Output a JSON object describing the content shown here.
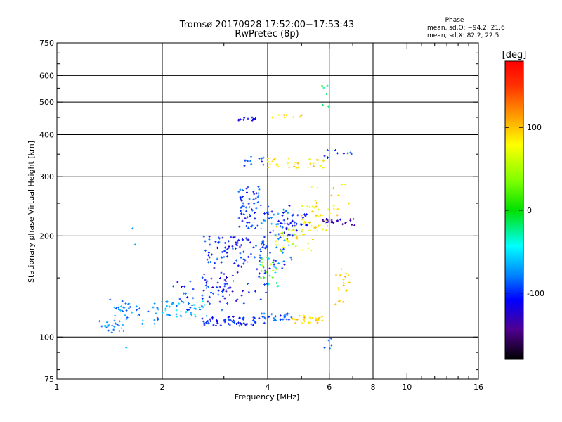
{
  "chart_data": {
    "type": "scatter",
    "title": "Tromsø 20170928 17:52:00−17:53:43",
    "subtitle": "RwPretec (8p)",
    "xlabel": "Frequency [MHz]",
    "ylabel": "Stationary phase Virtual Height [km]",
    "x_scale": "log",
    "y_scale": "log",
    "xlim": [
      1,
      16
    ],
    "ylim": [
      75,
      750
    ],
    "x_ticks": [
      1,
      2,
      4,
      6,
      8,
      10,
      16
    ],
    "y_ticks": [
      75,
      100,
      200,
      300,
      400,
      500,
      600,
      750
    ],
    "x_grid": [
      2,
      4,
      6,
      8
    ],
    "y_grid": [
      100,
      200,
      300,
      400,
      500,
      600
    ],
    "grid": true,
    "phase_stats": {
      "heading": "Phase",
      "line_o": "mean, sd,O:  −94.2,  21.6",
      "line_x": "mean, sd,X:  82.2,  22.5"
    },
    "colorbar": {
      "label": "[deg]",
      "range": [
        -180,
        180
      ],
      "ticks": [
        100,
        0,
        -100
      ],
      "colormap": "rainbow"
    },
    "clusters": [
      {
        "f": [
          1.32,
          1.55
        ],
        "h": [
          103,
          112
        ],
        "phase": [
          -90,
          -60
        ],
        "n": 20
      },
      {
        "f": [
          1.45,
          1.95
        ],
        "h": [
          109,
          126
        ],
        "phase": [
          -100,
          -60
        ],
        "n": 40
      },
      {
        "f": [
          1.95,
          2.7
        ],
        "h": [
          115,
          128
        ],
        "phase": [
          -90,
          -40
        ],
        "n": 45
      },
      {
        "f": [
          2.6,
          4.0
        ],
        "h": [
          108,
          115
        ],
        "phase": [
          -120,
          -90
        ],
        "n": 60
      },
      {
        "f": [
          3.8,
          4.7
        ],
        "h": [
          112,
          118
        ],
        "phase": [
          -110,
          -70
        ],
        "n": 30
      },
      {
        "f": [
          4.7,
          5.8
        ],
        "h": [
          110,
          116
        ],
        "phase": [
          80,
          110
        ],
        "n": 30
      },
      {
        "f": [
          2.1,
          3.1
        ],
        "h": [
          120,
          150
        ],
        "phase": [
          -120,
          -80
        ],
        "n": 30
      },
      {
        "f": [
          2.6,
          4.0
        ],
        "h": [
          125,
          200
        ],
        "phase": [
          -130,
          -90
        ],
        "n": 90
      },
      {
        "f": [
          2.7,
          3.9
        ],
        "h": [
          165,
          200
        ],
        "phase": [
          -120,
          -80
        ],
        "n": 50
      },
      {
        "f": [
          3.3,
          3.8
        ],
        "h": [
          210,
          280
        ],
        "phase": [
          -120,
          -80
        ],
        "n": 60
      },
      {
        "f": [
          3.8,
          4.7
        ],
        "h": [
          160,
          250
        ],
        "phase": [
          -120,
          -60
        ],
        "n": 70
      },
      {
        "f": [
          3.8,
          4.3
        ],
        "h": [
          140,
          175
        ],
        "phase": [
          -60,
          60
        ],
        "n": 25
      },
      {
        "f": [
          4.2,
          5.4
        ],
        "h": [
          180,
          215
        ],
        "phase": [
          40,
          100
        ],
        "n": 40
      },
      {
        "f": [
          4.3,
          5.2
        ],
        "h": [
          200,
          235
        ],
        "phase": [
          -120,
          -90
        ],
        "n": 35
      },
      {
        "f": [
          5.0,
          6.0
        ],
        "h": [
          205,
          245
        ],
        "phase": [
          60,
          110
        ],
        "n": 30
      },
      {
        "f": [
          5.5,
          7.1
        ],
        "h": [
          215,
          225
        ],
        "phase": [
          -150,
          -110
        ],
        "n": 25
      },
      {
        "f": [
          5.3,
          7.0
        ],
        "h": [
          230,
          285
        ],
        "phase": [
          70,
          110
        ],
        "n": 20
      },
      {
        "f": [
          4.0,
          5.8
        ],
        "h": [
          318,
          340
        ],
        "phase": [
          70,
          110
        ],
        "n": 35
      },
      {
        "f": [
          3.2,
          3.9
        ],
        "h": [
          320,
          345
        ],
        "phase": [
          -110,
          -80
        ],
        "n": 12
      },
      {
        "f": [
          3.3,
          3.8
        ],
        "h": [
          440,
          450
        ],
        "phase": [
          -130,
          -100
        ],
        "n": 12
      },
      {
        "f": [
          4.0,
          5.0
        ],
        "h": [
          448,
          458
        ],
        "phase": [
          80,
          120
        ],
        "n": 8
      },
      {
        "f": [
          5.8,
          7.0
        ],
        "h": [
          340,
          360
        ],
        "phase": [
          -120,
          -80
        ],
        "n": 10
      },
      {
        "f": [
          6.2,
          7.0
        ],
        "h": [
          125,
          160
        ],
        "phase": [
          80,
          110
        ],
        "n": 20
      },
      {
        "f": [
          5.7,
          6.0
        ],
        "h": [
          460,
          560
        ],
        "phase": [
          -30,
          10
        ],
        "n": 6
      },
      {
        "f": [
          1.35,
          1.8
        ],
        "h": [
          80,
          230
        ],
        "phase": [
          -100,
          -60
        ],
        "n": 5
      },
      {
        "f": [
          5.8,
          6.3
        ],
        "h": [
          90,
          100
        ],
        "phase": [
          -100,
          -60
        ],
        "n": 5
      }
    ]
  }
}
